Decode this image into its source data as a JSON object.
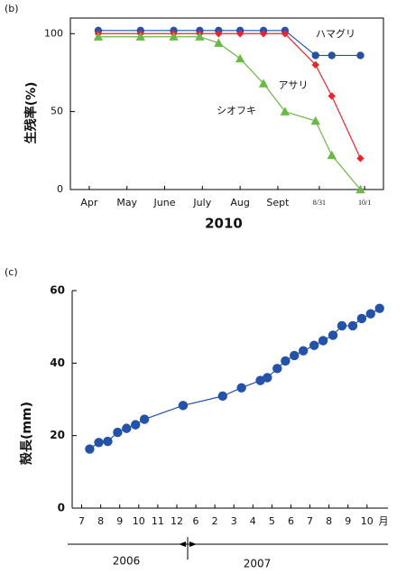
{
  "chart_data": [
    {
      "type": "line",
      "title": "(b)",
      "xlabel": "2010",
      "ylabel": "生残率(%)",
      "xlim": [
        3.5,
        11.8
      ],
      "ylim": [
        0,
        110
      ],
      "xticks": [
        {
          "value": 4,
          "label": "Apr"
        },
        {
          "value": 5,
          "label": "May"
        },
        {
          "value": 6,
          "label": "June"
        },
        {
          "value": 7,
          "label": "July"
        },
        {
          "value": 8,
          "label": "Aug"
        },
        {
          "value": 9,
          "label": "Sept"
        },
        {
          "value": 10.1,
          "label": "8/31"
        },
        {
          "value": 11.3,
          "label": "10/1"
        }
      ],
      "yticks": [
        0,
        50,
        100
      ],
      "x": [
        4.24,
        5.36,
        6.24,
        6.93,
        7.43,
        8.0,
        8.62,
        9.19,
        10.0,
        10.43,
        11.19
      ],
      "series": [
        {
          "name": "ハマグリ",
          "color": "#2352a8",
          "marker": "circle",
          "values": [
            102,
            102,
            102,
            102,
            102,
            102,
            102,
            102,
            86,
            86,
            86
          ]
        },
        {
          "name": "アサリ",
          "color": "#e8262a",
          "marker": "diamond",
          "values": [
            100,
            100,
            100,
            100,
            100,
            100,
            100,
            100,
            80,
            60,
            20
          ]
        },
        {
          "name": "シオフキ",
          "color": "#6ab845",
          "marker": "triangle",
          "values": [
            98,
            98,
            98,
            98,
            94,
            84,
            68,
            50,
            44,
            22,
            0
          ]
        }
      ]
    },
    {
      "type": "line",
      "title": "(c)",
      "xlabel": "月",
      "ylabel": "殻長(mm)",
      "xlim": [
        -0.5,
        16.1
      ],
      "ylim": [
        0,
        60
      ],
      "xticks": [
        {
          "value": 0,
          "label": "7"
        },
        {
          "value": 1,
          "label": "8"
        },
        {
          "value": 2,
          "label": "9"
        },
        {
          "value": 3,
          "label": "10"
        },
        {
          "value": 4,
          "label": "11"
        },
        {
          "value": 5,
          "label": "12"
        },
        6,
        {
          "value": 7,
          "label": "2"
        },
        {
          "value": 8,
          "label": "3"
        },
        {
          "value": 9,
          "label": "4"
        },
        {
          "value": 10,
          "label": "5"
        },
        {
          "value": 11,
          "label": "6"
        },
        {
          "value": 12,
          "label": "7"
        },
        {
          "value": 13,
          "label": "8"
        },
        {
          "value": 14,
          "label": "9"
        },
        {
          "value": 15,
          "label": "10"
        }
      ],
      "yticks": [
        0,
        20,
        40,
        60
      ],
      "years": [
        "2006",
        "2007"
      ],
      "x": [
        0.42,
        0.9,
        1.37,
        1.89,
        2.36,
        2.83,
        3.3,
        5.33,
        7.41,
        8.4,
        9.39,
        9.76,
        10.28,
        10.71,
        11.18,
        11.65,
        12.22,
        12.69,
        13.21,
        13.68,
        14.25,
        14.72,
        15.19,
        15.66
      ],
      "series": [
        {
          "name": null,
          "color": "#2352a8",
          "marker": "circle",
          "values": [
            16.3,
            18.1,
            18.4,
            20.9,
            22.0,
            23.0,
            24.5,
            28.3,
            30.9,
            33.2,
            35.2,
            36.0,
            38.5,
            40.6,
            42.1,
            43.4,
            44.9,
            46.2,
            47.7,
            50.3,
            50.3,
            52.3,
            53.6,
            55.1
          ]
        }
      ]
    }
  ]
}
